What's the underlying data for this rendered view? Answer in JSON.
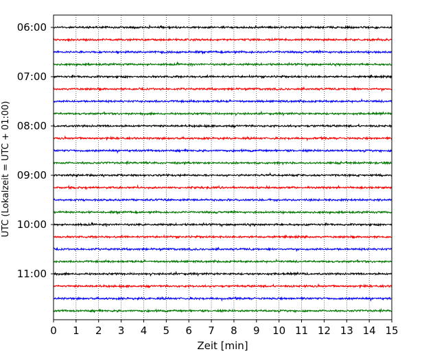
{
  "chart_data": {
    "type": "line",
    "title": "",
    "xlabel": "Zeit  [min]",
    "ylabel": "UTC (Lokalzeit = UTC + 01:00)",
    "xlim": [
      0,
      15
    ],
    "x_ticks": [
      "0",
      "1",
      "2",
      "3",
      "4",
      "5",
      "6",
      "7",
      "8",
      "9",
      "10",
      "11",
      "12",
      "13",
      "14",
      "15"
    ],
    "y_ticks": [
      "06:00",
      "07:00",
      "08:00",
      "09:00",
      "10:00",
      "11:00"
    ],
    "grid": "vertical dotted at each minute",
    "trace_start": "06:00",
    "trace_interval_min": 15,
    "trace_count": 24,
    "trace_colors": [
      "#000000",
      "#ff0000",
      "#0000ff",
      "#007700"
    ]
  }
}
